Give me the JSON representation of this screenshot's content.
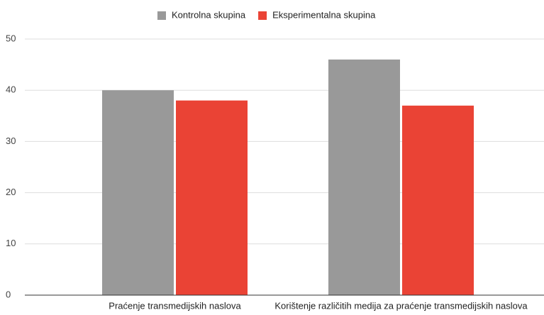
{
  "chart_data": {
    "type": "bar",
    "categories": [
      "Praćenje transmedijskih naslova",
      "Korištenje različitih medija za praćenje transmedijskih naslova"
    ],
    "series": [
      {
        "name": "Kontrolna skupina",
        "color": "#999999",
        "values": [
          40,
          46
        ]
      },
      {
        "name": "Eksperimentalna skupina",
        "color": "#ea4335",
        "values": [
          38,
          37
        ]
      }
    ],
    "ylim": [
      0,
      50
    ],
    "yticks": [
      0,
      10,
      20,
      30,
      40,
      50
    ],
    "grid": true,
    "legend": "top"
  }
}
